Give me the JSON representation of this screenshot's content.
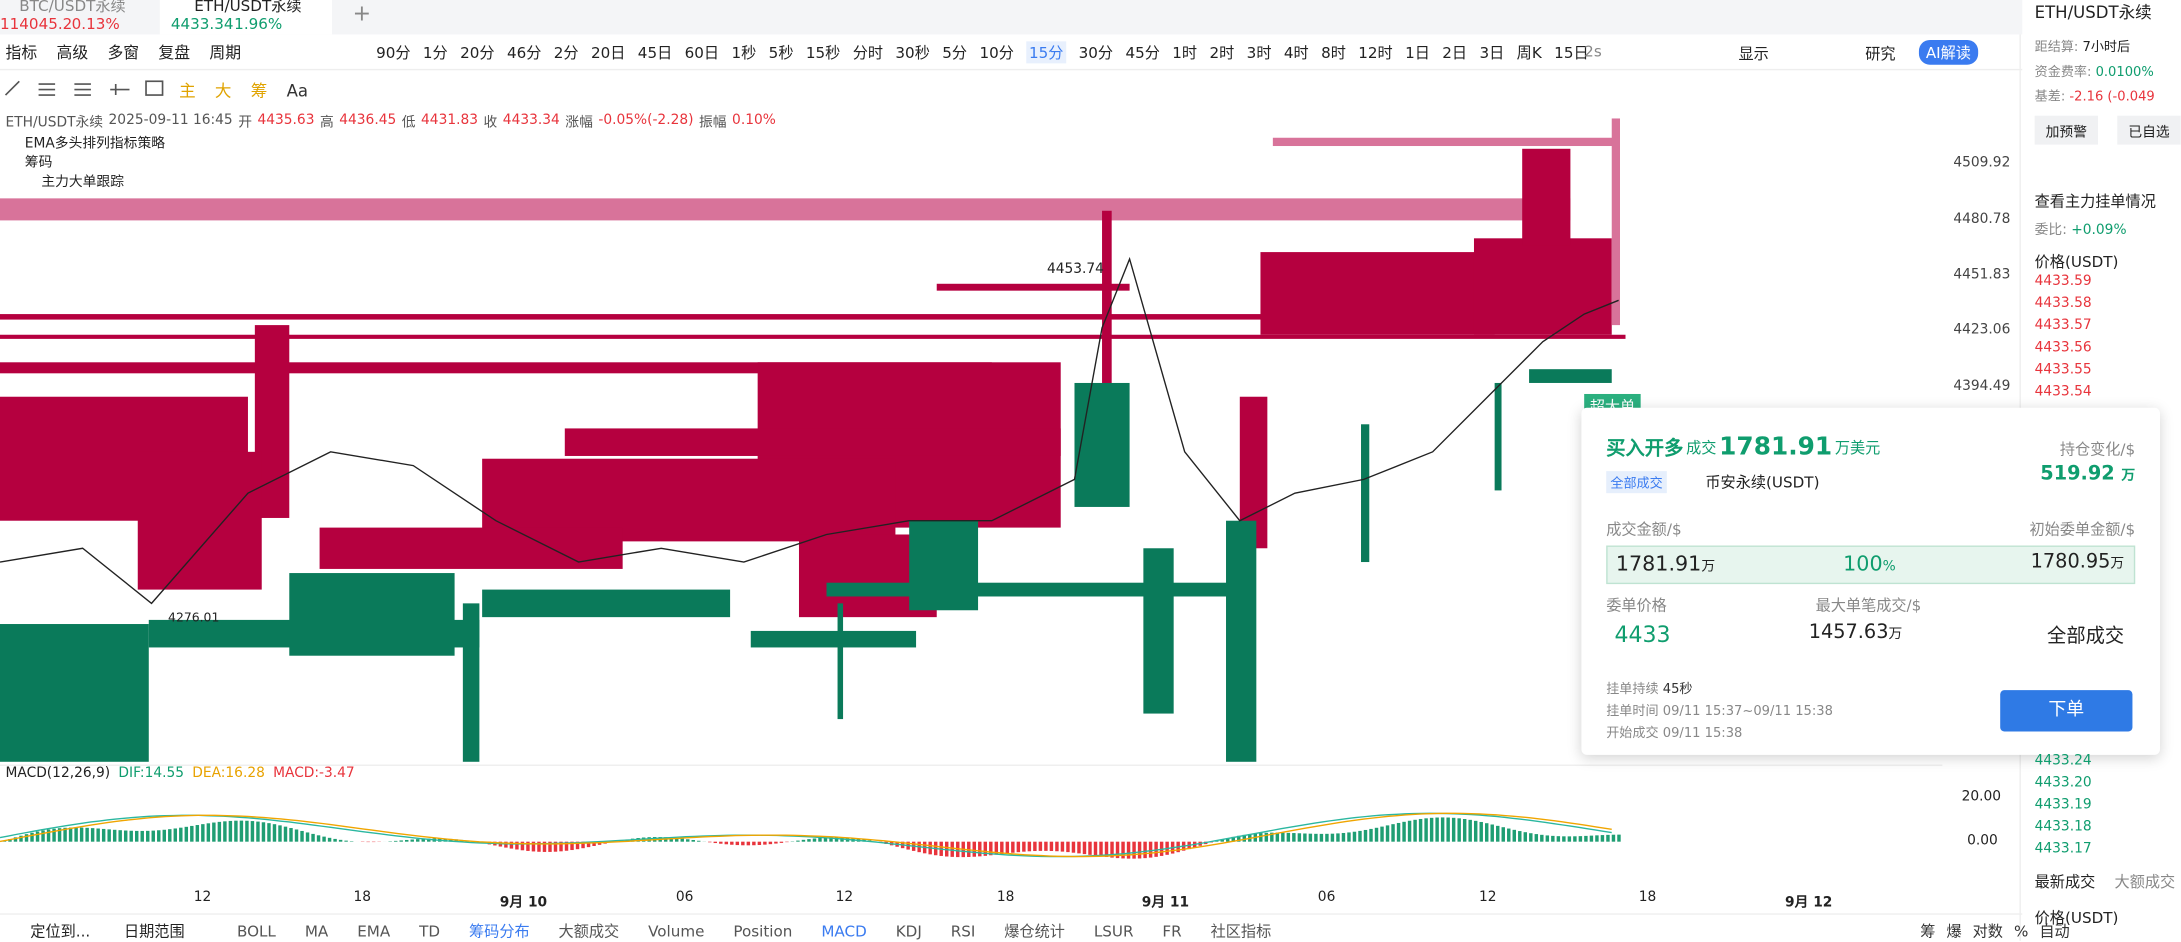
{
  "tabs": [
    {
      "name": "BTC/USDT永续",
      "price": "114045.2",
      "change": "0.13%"
    },
    {
      "name": "ETH/USDT永续",
      "price": "4433.34",
      "change": "1.96%"
    }
  ],
  "toolbar": {
    "items": [
      "指标",
      "高级",
      "多窗",
      "复盘",
      "周期"
    ],
    "intervals": [
      "90分",
      "1分",
      "20分",
      "46分",
      "2分",
      "20日",
      "45日",
      "60日",
      "1秒",
      "5秒",
      "15秒",
      "分时",
      "30秒",
      "5分",
      "10分",
      "15分",
      "30分",
      "45分",
      "1时",
      "2时",
      "3时",
      "4时",
      "8时",
      "12时",
      "1日",
      "2日",
      "3日",
      "周K",
      "15日"
    ],
    "active_interval": "15分",
    "refresh": "2s",
    "display": "显示",
    "research": "研究",
    "ai": "AI解读"
  },
  "drawing_tools": [
    "主",
    "大",
    "筹",
    "Aa"
  ],
  "legend": {
    "symbol": "ETH/USDT永续",
    "time": "2025-09-11 16:45",
    "open_label": "开",
    "open": "4435.63",
    "high_label": "高",
    "high": "4436.45",
    "low_label": "低",
    "low": "4431.83",
    "close_label": "收",
    "close": "4433.34",
    "change_label": "涨幅",
    "change": "-0.05%(-2.28)",
    "amp_label": "振幅",
    "amp": "0.10%"
  },
  "indicators": [
    "EMA多头排列指标策略",
    "筹码",
    "主力大单跟踪"
  ],
  "price_axis": [
    "4509.92",
    "4480.78",
    "4451.83",
    "4423.06",
    "4394.49"
  ],
  "annotations": [
    "4453.74",
    "4276.01"
  ],
  "macd": {
    "label": "MACD(12,26,9)",
    "dif": "DIF:14.55",
    "dea": "DEA:16.28",
    "macd": "MACD:-3.47",
    "axis": [
      "20.00",
      "0.00"
    ]
  },
  "time_axis": [
    "12",
    "18",
    "9月 10",
    "06",
    "12",
    "18",
    "9月 11",
    "06",
    "12",
    "18",
    "9月 12"
  ],
  "bottom_bar": {
    "left": [
      "定位到...",
      "日期范围"
    ],
    "items": [
      "BOLL",
      "MA",
      "EMA",
      "TD",
      "筹码分布",
      "大额成交",
      "Volume",
      "Position",
      "MACD",
      "KDJ",
      "RSI",
      "爆仓统计",
      "LSUR",
      "FR",
      "社区指标"
    ],
    "right": [
      "筹",
      "爆",
      "对数",
      "%",
      "自动"
    ]
  },
  "order_card": {
    "tag": "超大单",
    "action": "买入开多",
    "deal": "成交",
    "amount": "1781.91",
    "amount_unit": "万美元",
    "position_change_label": "持仓变化/$",
    "position_change": "519.92",
    "position_change_unit": "万",
    "status_badge": "全部成交",
    "exchange": "币安永续(USDT)",
    "filled_label": "成交金额/$",
    "initial_label": "初始委单金额/$",
    "filled": "1781.91",
    "filled_unit": "万",
    "ratio": "100",
    "ratio_unit": "%",
    "initial": "1780.95",
    "initial_unit": "万",
    "price_label": "委单价格",
    "price": "4433",
    "max_fill_label": "最大单笔成交/$",
    "max_fill": "1457.63",
    "max_fill_unit": "万",
    "status": "全部成交",
    "duration_label": "挂单持续",
    "duration": "45秒",
    "time_label": "挂单时间",
    "time": "09/11 15:37~09/11 15:38",
    "start_label": "开始成交",
    "start": "09/11 15:38",
    "button": "下单"
  },
  "sidebar": {
    "symbol": "ETH/USDT永续",
    "settle_label": "距结算:",
    "settle": "7小时后",
    "funding_label": "资金费率:",
    "funding": "0.0100%",
    "basis_label": "基差:",
    "basis": "-2.16 (-0.049",
    "alert": "加预警",
    "saved": "已自选",
    "orders_title": "查看主力挂单情况",
    "ratio_label": "委比:",
    "ratio": "+0.09%",
    "price_header": "价格(USDT)",
    "asks": [
      "4433.59",
      "4433.58",
      "4433.57",
      "4433.56",
      "4433.55",
      "4433.54"
    ],
    "bids": [
      "4433.24",
      "4433.20",
      "4433.19",
      "4433.18",
      "4433.17"
    ],
    "tab_latest": "最新成交",
    "tab_large": "大额成交",
    "price_header2": "价格(USDT)"
  }
}
